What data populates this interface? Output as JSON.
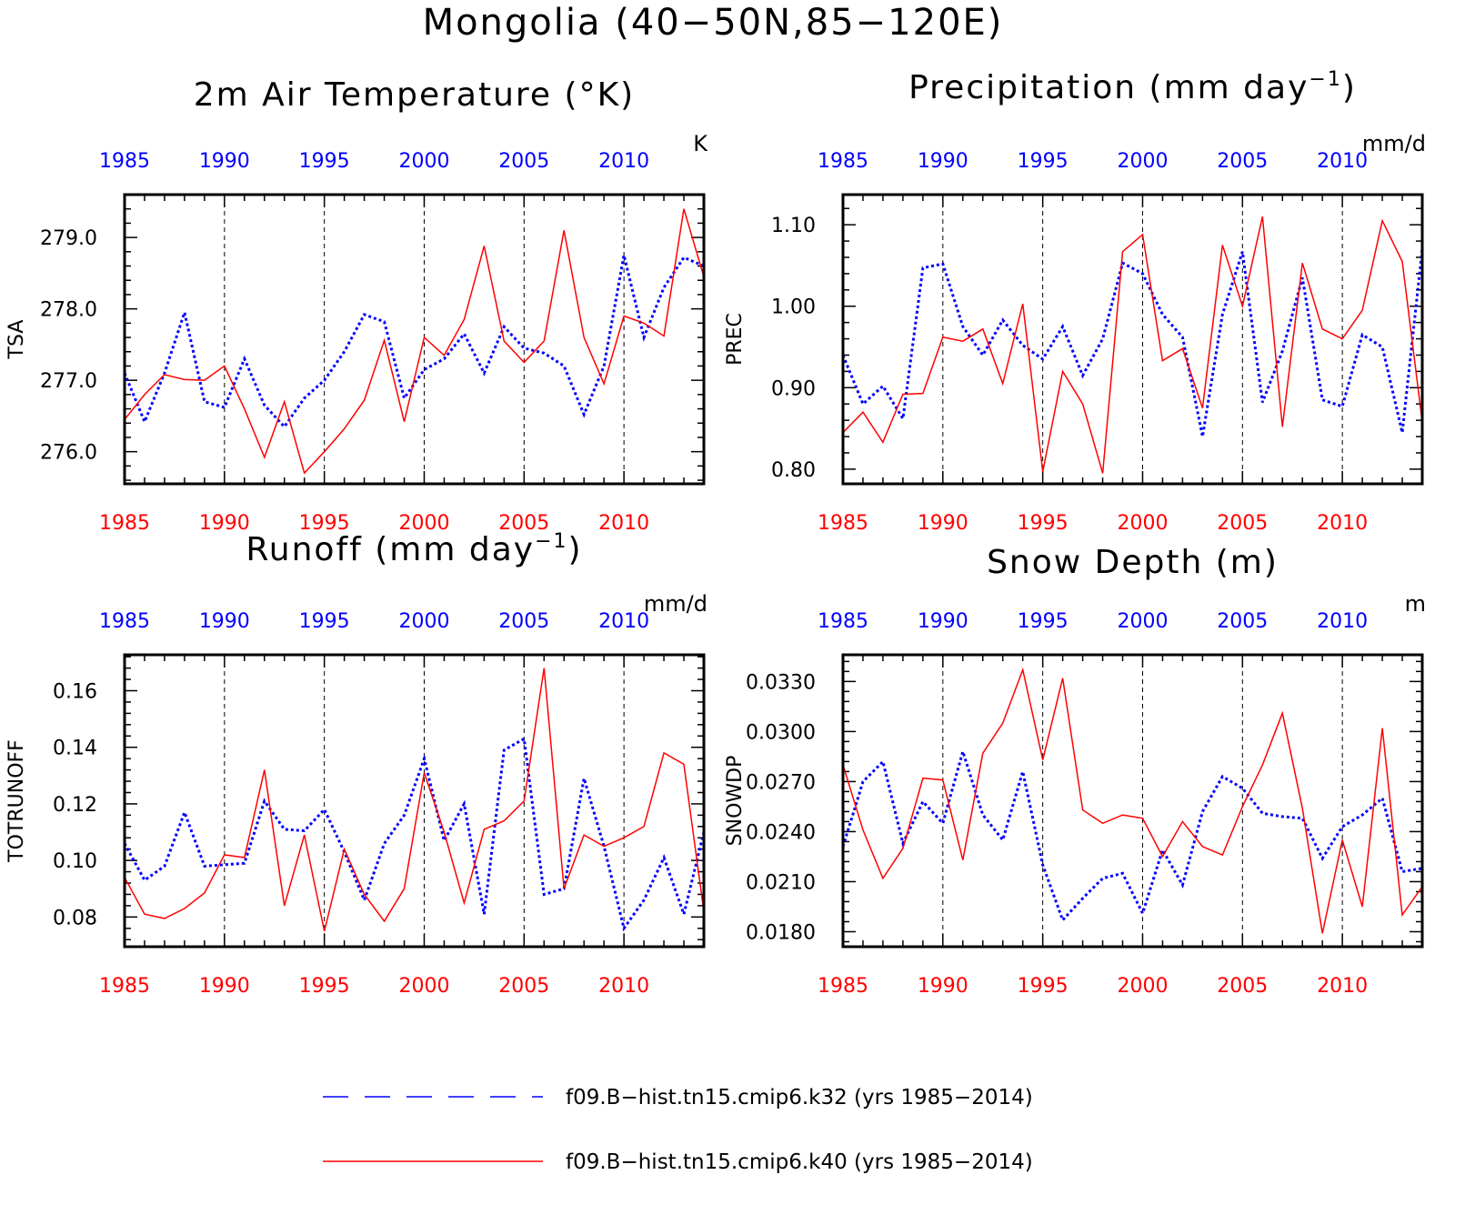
{
  "main_title": "Mongolia (40−50N,85−120E)",
  "colors": {
    "blue": "#0000ff",
    "red": "#ff0000",
    "axis": "#000000"
  },
  "legend": [
    {
      "label": "f09.B−hist.tn15.cmip6.k32 (yrs 1985−2014)",
      "color": "#0000ff",
      "style": "dashed"
    },
    {
      "label": "f09.B−hist.tn15.cmip6.k40 (yrs 1985−2014)",
      "color": "#ff0000",
      "style": "solid"
    }
  ],
  "chart_data": [
    {
      "type": "line",
      "title": "2m Air Temperature (°K)",
      "title_sup": "",
      "title_tail": "",
      "ylabel": "TSA",
      "units": "K",
      "x_ticks": [
        "1985",
        "1990",
        "1995",
        "2000",
        "2005",
        "2010"
      ],
      "xlim": [
        1985,
        2014
      ],
      "ylim": [
        275.55,
        279.6
      ],
      "y_ticks": [
        "276.0",
        "277.0",
        "278.0",
        "279.0"
      ],
      "x": [
        1985,
        1986,
        1987,
        1988,
        1989,
        1990,
        1991,
        1992,
        1993,
        1994,
        1995,
        1996,
        1997,
        1998,
        1999,
        2000,
        2001,
        2002,
        2003,
        2004,
        2005,
        2006,
        2007,
        2008,
        2009,
        2010,
        2011,
        2012,
        2013,
        2014
      ],
      "series": [
        {
          "name": "f09.B−hist.tn15.cmip6.k32",
          "color": "#0000ff",
          "style": "dotted",
          "values": [
            277.1,
            276.42,
            277.1,
            277.95,
            276.7,
            276.62,
            277.3,
            276.65,
            276.35,
            276.75,
            277.0,
            277.4,
            277.92,
            277.82,
            276.75,
            277.15,
            277.3,
            277.65,
            277.1,
            277.75,
            277.45,
            277.38,
            277.2,
            276.52,
            277.2,
            278.75,
            277.6,
            278.3,
            278.72,
            278.6
          ]
        },
        {
          "name": "f09.B−hist.tn15.cmip6.k40",
          "color": "#ff0000",
          "style": "solid",
          "values": [
            276.45,
            276.8,
            277.08,
            277.01,
            277.0,
            277.2,
            276.6,
            275.92,
            276.7,
            275.7,
            276.0,
            276.32,
            276.72,
            277.56,
            276.42,
            277.6,
            277.35,
            277.85,
            278.88,
            277.55,
            277.25,
            277.55,
            279.1,
            277.6,
            276.95,
            277.9,
            277.8,
            277.62,
            279.4,
            278.45
          ]
        }
      ]
    },
    {
      "type": "line",
      "title": "Precipitation (mm day",
      "title_sup": "−1",
      "title_tail": ")",
      "ylabel": "PREC",
      "units": "mm/d",
      "x_ticks": [
        "1985",
        "1990",
        "1995",
        "2000",
        "2005",
        "2010"
      ],
      "xlim": [
        1985,
        2014
      ],
      "ylim": [
        0.782,
        1.137
      ],
      "y_ticks": [
        "0.80",
        "0.90",
        "1.00",
        "1.10"
      ],
      "x": [
        1985,
        1986,
        1987,
        1988,
        1989,
        1990,
        1991,
        1992,
        1993,
        1994,
        1995,
        1996,
        1997,
        1998,
        1999,
        2000,
        2001,
        2002,
        2003,
        2004,
        2005,
        2006,
        2007,
        2008,
        2009,
        2010,
        2011,
        2012,
        2013,
        2014
      ],
      "series": [
        {
          "name": "f09.B−hist.tn15.cmip6.k32",
          "color": "#0000ff",
          "style": "dotted",
          "values": [
            0.94,
            0.88,
            0.902,
            0.862,
            1.047,
            1.052,
            0.975,
            0.94,
            0.983,
            0.952,
            0.935,
            0.975,
            0.915,
            0.96,
            1.053,
            1.04,
            0.99,
            0.962,
            0.84,
            0.99,
            1.067,
            0.882,
            0.945,
            1.035,
            0.885,
            0.877,
            0.965,
            0.95,
            0.845,
            1.07
          ]
        },
        {
          "name": "f09.B−hist.tn15.cmip6.k40",
          "color": "#ff0000",
          "style": "solid",
          "values": [
            0.845,
            0.87,
            0.833,
            0.892,
            0.893,
            0.962,
            0.957,
            0.972,
            0.905,
            1.003,
            0.797,
            0.92,
            0.88,
            0.795,
            1.067,
            1.088,
            0.933,
            0.948,
            0.875,
            1.075,
            1.0,
            1.11,
            0.852,
            1.053,
            0.972,
            0.96,
            0.995,
            1.105,
            1.055,
            0.858
          ]
        }
      ]
    },
    {
      "type": "line",
      "title": "Runoff (mm day",
      "title_sup": "−1",
      "title_tail": ")",
      "ylabel": "TOTRUNOFF",
      "units": "mm/d",
      "x_ticks": [
        "1985",
        "1990",
        "1995",
        "2000",
        "2005",
        "2010"
      ],
      "xlim": [
        1985,
        2014
      ],
      "ylim": [
        0.0695,
        0.1727
      ],
      "y_ticks": [
        "0.08",
        "0.10",
        "0.12",
        "0.14",
        "0.16"
      ],
      "x": [
        1985,
        1986,
        1987,
        1988,
        1989,
        1990,
        1991,
        1992,
        1993,
        1994,
        1995,
        1996,
        1997,
        1998,
        1999,
        2000,
        2001,
        2002,
        2003,
        2004,
        2005,
        2006,
        2007,
        2008,
        2009,
        2010,
        2011,
        2012,
        2013,
        2014
      ],
      "series": [
        {
          "name": "f09.B−hist.tn15.cmip6.k32",
          "color": "#0000ff",
          "style": "dotted",
          "values": [
            0.106,
            0.093,
            0.098,
            0.117,
            0.098,
            0.0985,
            0.099,
            0.121,
            0.111,
            0.1105,
            0.118,
            0.103,
            0.086,
            0.106,
            0.116,
            0.136,
            0.107,
            0.12,
            0.081,
            0.139,
            0.143,
            0.088,
            0.09,
            0.129,
            0.105,
            0.076,
            0.086,
            0.101,
            0.081,
            0.11
          ]
        },
        {
          "name": "f09.B−hist.tn15.cmip6.k40",
          "color": "#ff0000",
          "style": "solid",
          "values": [
            0.094,
            0.081,
            0.0795,
            0.083,
            0.0885,
            0.102,
            0.101,
            0.132,
            0.084,
            0.109,
            0.075,
            0.104,
            0.088,
            0.0785,
            0.09,
            0.131,
            0.11,
            0.085,
            0.111,
            0.114,
            0.121,
            0.168,
            0.09,
            0.109,
            0.105,
            0.108,
            0.112,
            0.138,
            0.134,
            0.082
          ]
        }
      ]
    },
    {
      "type": "line",
      "title": "Snow Depth (m)",
      "title_sup": "",
      "title_tail": "",
      "ylabel": "SNOWDP",
      "units": "m",
      "x_ticks": [
        "1985",
        "1990",
        "1995",
        "2000",
        "2005",
        "2010"
      ],
      "xlim": [
        1985,
        2014
      ],
      "ylim": [
        0.0171,
        0.0346
      ],
      "y_ticks": [
        "0.0180",
        "0.0210",
        "0.0240",
        "0.0270",
        "0.0300",
        "0.0330"
      ],
      "x": [
        1985,
        1986,
        1987,
        1988,
        1989,
        1990,
        1991,
        1992,
        1993,
        1994,
        1995,
        1996,
        1997,
        1998,
        1999,
        2000,
        2001,
        2002,
        2003,
        2004,
        2005,
        2006,
        2007,
        2008,
        2009,
        2010,
        2011,
        2012,
        2013,
        2014
      ],
      "series": [
        {
          "name": "f09.B−hist.tn15.cmip6.k32",
          "color": "#0000ff",
          "style": "dotted",
          "values": [
            0.0231,
            0.027,
            0.0282,
            0.0233,
            0.0258,
            0.0245,
            0.0288,
            0.025,
            0.0235,
            0.0276,
            0.022,
            0.0187,
            0.02,
            0.0212,
            0.0215,
            0.0191,
            0.0229,
            0.0208,
            0.0252,
            0.0273,
            0.0266,
            0.0251,
            0.0249,
            0.0248,
            0.0224,
            0.0243,
            0.025,
            0.026,
            0.0216,
            0.0218
          ]
        },
        {
          "name": "f09.B−hist.tn15.cmip6.k40",
          "color": "#ff0000",
          "style": "solid",
          "values": [
            0.028,
            0.0241,
            0.0212,
            0.023,
            0.0272,
            0.0271,
            0.0223,
            0.0287,
            0.0305,
            0.0337,
            0.0283,
            0.0332,
            0.0253,
            0.0245,
            0.025,
            0.0248,
            0.0225,
            0.0246,
            0.0231,
            0.0226,
            0.0255,
            0.028,
            0.0311,
            0.0254,
            0.0179,
            0.0235,
            0.0195,
            0.0302,
            0.019,
            0.0207
          ]
        }
      ]
    }
  ]
}
